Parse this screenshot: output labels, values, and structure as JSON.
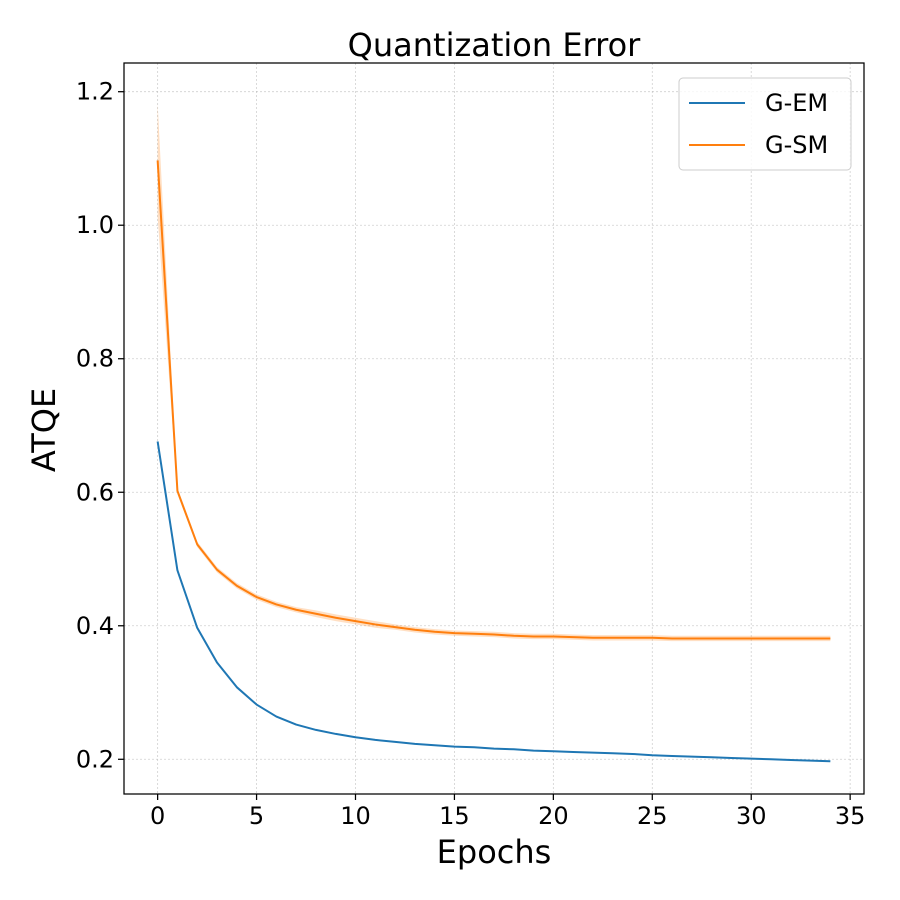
{
  "chart_data": {
    "type": "line",
    "title": "Quantization Error",
    "xlabel": "Epochs",
    "ylabel": "ATQE",
    "xlim": [
      -1.7,
      35.7
    ],
    "ylim": [
      0.148,
      1.243
    ],
    "xticks": [
      0,
      5,
      10,
      15,
      20,
      25,
      30,
      35
    ],
    "yticks": [
      0.2,
      0.4,
      0.6,
      0.8,
      1.0,
      1.2
    ],
    "xtick_labels": [
      "0",
      "5",
      "10",
      "15",
      "20",
      "25",
      "30",
      "35"
    ],
    "ytick_labels": [
      "0.2",
      "0.4",
      "0.6",
      "0.8",
      "1.0",
      "1.2"
    ],
    "grid": true,
    "legend_position": "top-right",
    "x": [
      0,
      1,
      2,
      3,
      4,
      5,
      6,
      7,
      8,
      9,
      10,
      11,
      12,
      13,
      14,
      15,
      16,
      17,
      18,
      19,
      20,
      21,
      22,
      23,
      24,
      25,
      26,
      27,
      28,
      29,
      30,
      31,
      32,
      33,
      34
    ],
    "series": [
      {
        "name": "G-EM",
        "color": "#1f77b4",
        "values": [
          0.676,
          0.483,
          0.397,
          0.345,
          0.308,
          0.282,
          0.264,
          0.252,
          0.244,
          0.238,
          0.233,
          0.229,
          0.226,
          0.223,
          0.221,
          0.219,
          0.218,
          0.216,
          0.215,
          0.213,
          0.212,
          0.211,
          0.21,
          0.209,
          0.208,
          0.206,
          0.205,
          0.204,
          0.203,
          0.202,
          0.201,
          0.2,
          0.199,
          0.198,
          0.197
        ]
      },
      {
        "name": "G-SM",
        "color": "#ff7f0e",
        "values": [
          1.097,
          0.602,
          0.522,
          0.484,
          0.46,
          0.443,
          0.432,
          0.424,
          0.418,
          0.412,
          0.407,
          0.402,
          0.398,
          0.394,
          0.391,
          0.389,
          0.388,
          0.387,
          0.385,
          0.384,
          0.384,
          0.383,
          0.382,
          0.382,
          0.382,
          0.382,
          0.381,
          0.381,
          0.381,
          0.381,
          0.381,
          0.381,
          0.381,
          0.381,
          0.381
        ],
        "band_halfwidth": [
          0.085,
          0.005,
          0.004,
          0.004,
          0.004,
          0.004,
          0.004,
          0.004,
          0.005,
          0.005,
          0.005,
          0.005,
          0.004,
          0.004,
          0.004,
          0.004,
          0.004,
          0.004,
          0.004,
          0.004,
          0.004,
          0.004,
          0.004,
          0.004,
          0.004,
          0.004,
          0.004,
          0.004,
          0.004,
          0.004,
          0.004,
          0.004,
          0.004,
          0.004,
          0.004
        ]
      }
    ]
  }
}
